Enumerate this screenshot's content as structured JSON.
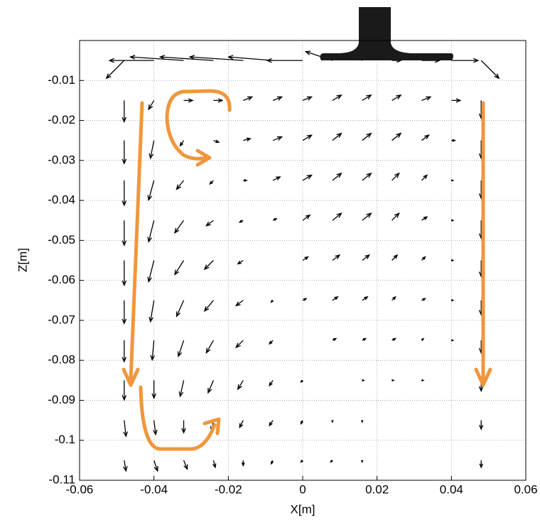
{
  "chart_data": {
    "type": "quiver",
    "x_label": "X[m]",
    "y_label": "Z[m]",
    "xlim": [
      -0.06,
      0.06
    ],
    "ylim": [
      -0.11,
      0
    ],
    "xticks": [
      -0.06,
      -0.04,
      -0.02,
      0,
      0.02,
      0.04,
      0.06
    ],
    "yticks": [
      -0.11,
      -0.1,
      -0.09,
      -0.08,
      -0.07,
      -0.06,
      -0.05,
      -0.04,
      -0.03,
      -0.02,
      -0.01
    ],
    "grid": true,
    "color": "#000000",
    "x": [
      -0.048,
      -0.04,
      -0.032,
      -0.024,
      -0.016,
      -0.008,
      0,
      0.008,
      0.016,
      0.024,
      0.032,
      0.04,
      0.048
    ],
    "z": [
      -0.005,
      -0.015,
      -0.025,
      -0.035,
      -0.045,
      -0.055,
      -0.065,
      -0.075,
      -0.085,
      -0.095,
      -0.105
    ],
    "u": [
      [
        -0.1,
        -0.25,
        -0.3,
        -0.3,
        -0.3,
        -0.25,
        -0.2,
        -0.15,
        -0.05,
        0.05,
        0.1,
        0.15,
        0.1
      ],
      [
        0,
        -0.03,
        0.05,
        0.05,
        0.05,
        0.05,
        0.05,
        0.05,
        0.05,
        0.05,
        0.05,
        0.05,
        0
      ],
      [
        0,
        -0.02,
        -0.02,
        0.03,
        0.04,
        0.05,
        0.05,
        0.05,
        0.05,
        0.05,
        0.04,
        0.02,
        0
      ],
      [
        0,
        -0.03,
        -0.04,
        -0.02,
        0.02,
        0.04,
        0.05,
        0.05,
        0.05,
        0.04,
        0.03,
        0.01,
        0
      ],
      [
        0,
        -0.03,
        -0.05,
        -0.04,
        -0.02,
        0.02,
        0.04,
        0.05,
        0.05,
        0.04,
        0.03,
        0.01,
        0
      ],
      [
        0,
        -0.03,
        -0.05,
        -0.05,
        -0.03,
        0,
        0.03,
        0.04,
        0.04,
        0.03,
        0.02,
        0.01,
        0
      ],
      [
        0,
        -0.02,
        -0.04,
        -0.05,
        -0.04,
        -0.01,
        0.02,
        0.03,
        0.03,
        0.02,
        0.02,
        0.01,
        0
      ],
      [
        0,
        -0.01,
        -0.03,
        -0.04,
        -0.04,
        -0.02,
        0,
        0.02,
        0.02,
        0.02,
        0.01,
        0.01,
        0
      ],
      [
        0,
        0,
        -0.02,
        -0.03,
        -0.03,
        -0.02,
        -0.01,
        0,
        0.01,
        0.01,
        0.01,
        0,
        0
      ],
      [
        0.01,
        0.01,
        0,
        -0.01,
        -0.02,
        -0.02,
        -0.01,
        0,
        0,
        0,
        0,
        0,
        0
      ],
      [
        0.01,
        0.02,
        0.02,
        0.01,
        0,
        -0.01,
        -0.01,
        -0.01,
        0,
        0,
        0,
        0,
        0
      ]
    ],
    "w": [
      [
        -0.1,
        0,
        0.02,
        0.02,
        0.02,
        0.02,
        0,
        0.05,
        0.02,
        0,
        0,
        0,
        -0.1
      ],
      [
        -0.12,
        -0.05,
        0,
        0,
        0.02,
        0.02,
        0.02,
        0.03,
        0.03,
        0.03,
        0.02,
        0,
        -0.1
      ],
      [
        -0.13,
        -0.1,
        -0.03,
        -0.01,
        0.01,
        0.02,
        0.03,
        0.04,
        0.04,
        0.04,
        0.03,
        0,
        -0.1
      ],
      [
        -0.14,
        -0.11,
        -0.05,
        -0.02,
        0,
        0.02,
        0.03,
        0.04,
        0.04,
        0.04,
        0.03,
        0,
        -0.1
      ],
      [
        -0.14,
        -0.12,
        -0.07,
        -0.03,
        -0.01,
        0.01,
        0.03,
        0.04,
        0.04,
        0.04,
        0.02,
        0,
        -0.1
      ],
      [
        -0.14,
        -0.12,
        -0.08,
        -0.05,
        -0.02,
        0,
        0.02,
        0.03,
        0.03,
        0.03,
        0.02,
        0,
        -0.09
      ],
      [
        -0.13,
        -0.12,
        -0.09,
        -0.06,
        -0.03,
        -0.01,
        0.01,
        0.02,
        0.02,
        0.02,
        0.01,
        0,
        -0.08
      ],
      [
        -0.12,
        -0.11,
        -0.09,
        -0.07,
        -0.04,
        -0.02,
        0,
        0.01,
        0.01,
        0.01,
        0.01,
        0,
        -0.07
      ],
      [
        -0.11,
        -0.1,
        -0.09,
        -0.07,
        -0.05,
        -0.03,
        -0.01,
        0,
        0,
        0,
        0,
        0,
        -0.06
      ],
      [
        -0.09,
        -0.08,
        -0.07,
        -0.06,
        -0.04,
        -0.03,
        -0.02,
        -0.01,
        -0.01,
        0,
        0,
        0,
        -0.05
      ],
      [
        -0.06,
        -0.06,
        -0.05,
        -0.04,
        -0.03,
        -0.02,
        -0.01,
        -0.01,
        -0.01,
        0,
        0,
        0,
        -0.04
      ]
    ]
  }
}
